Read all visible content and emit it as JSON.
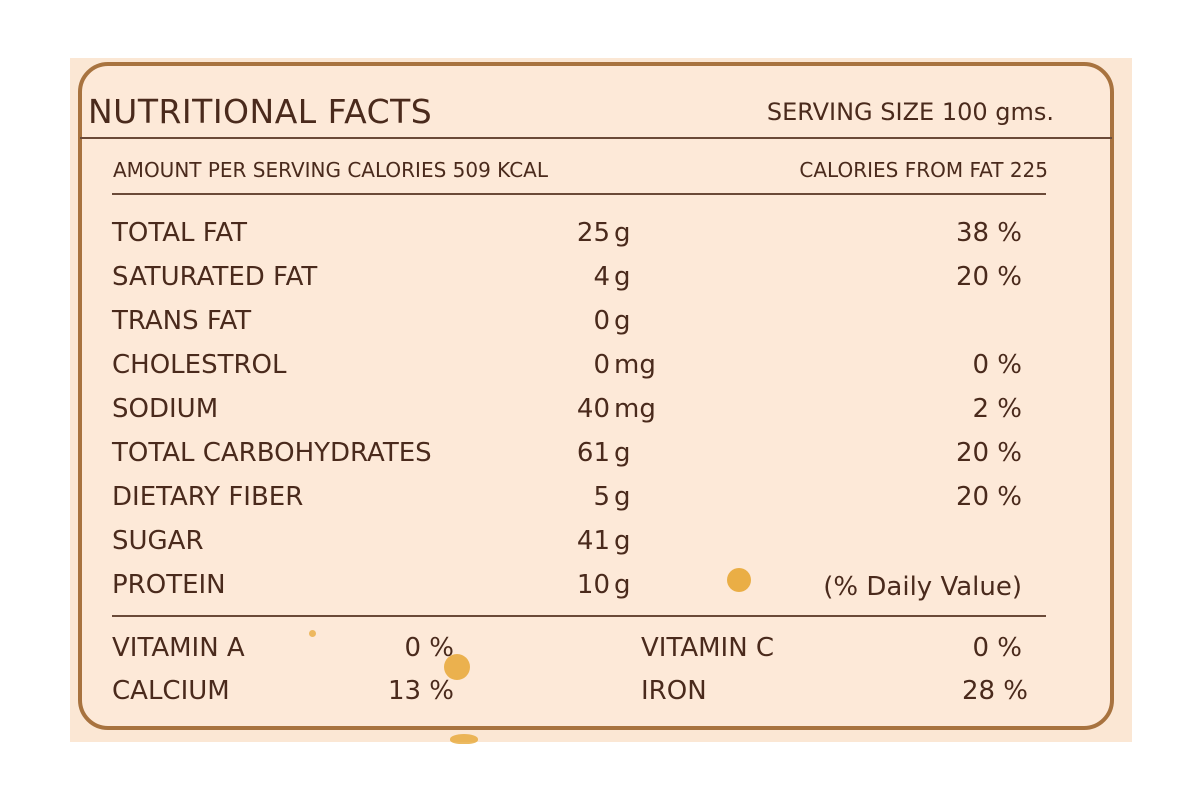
{
  "header": {
    "title": "NUTRITIONAL FACTS",
    "serving_size": "SERVING SIZE 100 gms."
  },
  "summary": {
    "amount_per_serving": "AMOUNT PER SERVING CALORIES 509 KCAL",
    "calories_from_fat": "CALORIES FROM FAT 225"
  },
  "nutrients": [
    {
      "name": "TOTAL FAT",
      "qty": "25",
      "unit": "g",
      "dv": "38 %"
    },
    {
      "name": "SATURATED FAT",
      "qty": "4",
      "unit": "g",
      "dv": "20 %"
    },
    {
      "name": "TRANS FAT",
      "qty": "0",
      "unit": "g",
      "dv": ""
    },
    {
      "name": "CHOLESTROL",
      "qty": "0",
      "unit": "mg",
      "dv": "0 %"
    },
    {
      "name": "SODIUM",
      "qty": "40",
      "unit": "mg",
      "dv": "2 %"
    },
    {
      "name": "TOTAL CARBOHYDRATES",
      "qty": "61",
      "unit": "g",
      "dv": "20 %"
    },
    {
      "name": "DIETARY FIBER",
      "qty": "5",
      "unit": "g",
      "dv": "20 %"
    },
    {
      "name": "SUGAR",
      "qty": "41",
      "unit": "g",
      "dv": ""
    },
    {
      "name": "PROTEIN",
      "qty": "10",
      "unit": "g",
      "dv": ""
    }
  ],
  "daily_value_note": "(% Daily Value)",
  "vitamins": [
    {
      "name": "VITAMIN A",
      "value": "0 %"
    },
    {
      "name": "VITAMIN C",
      "value": "0 %"
    },
    {
      "name": "CALCIUM",
      "value": "13 %"
    },
    {
      "name": "IRON",
      "value": "28 %"
    }
  ],
  "colors": {
    "text": "#4a2a1c",
    "border": "#a8733f",
    "background": "#fde9d8"
  }
}
